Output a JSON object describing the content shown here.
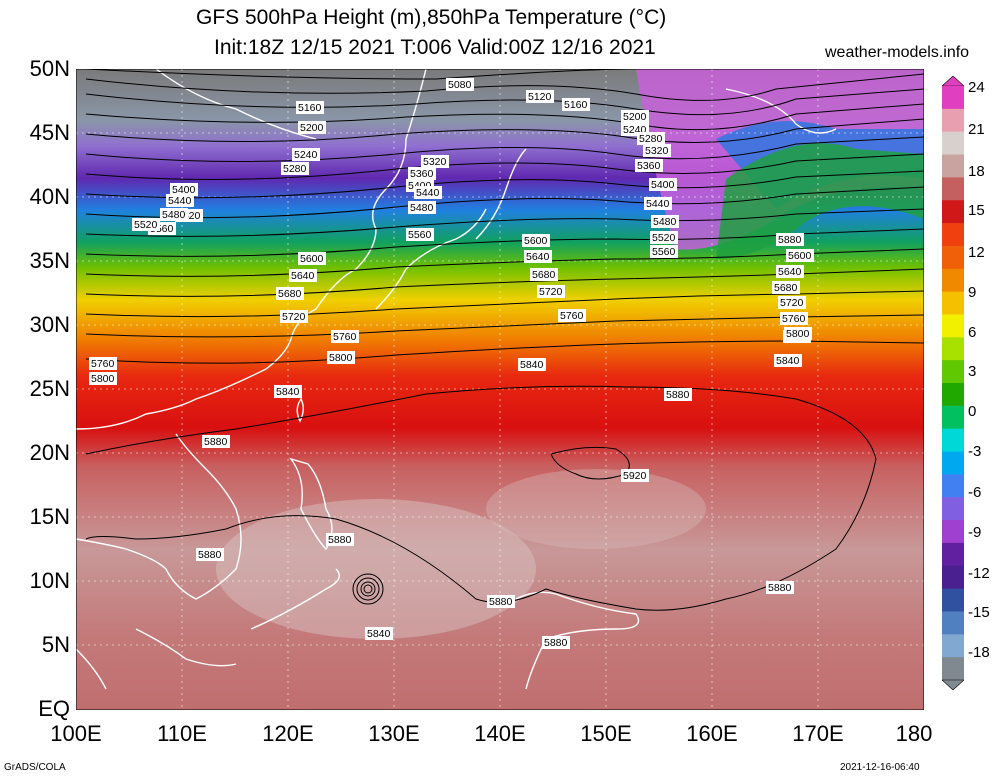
{
  "header": {
    "title_line1": "GFS 500hPa Height (m),850hPa Temperature (°C)",
    "title_line2": "Init:18Z 12/15 2021 T:006 Valid:00Z 12/16 2021",
    "site": "weather-models.info"
  },
  "axes": {
    "lat_labels": [
      "50N",
      "45N",
      "40N",
      "35N",
      "30N",
      "25N",
      "20N",
      "15N",
      "10N",
      "5N",
      "EQ"
    ],
    "lon_labels": [
      "100E",
      "110E",
      "120E",
      "130E",
      "140E",
      "150E",
      "160E",
      "170E",
      "180"
    ]
  },
  "colorbar": {
    "labels": [
      "24",
      "21",
      "18",
      "15",
      "12",
      "9",
      "6",
      "3",
      "0",
      "-3",
      "-6",
      "-9",
      "-12",
      "-15",
      "-18"
    ],
    "colors": [
      "#e040c0",
      "#e8a0b0",
      "#d8d0cc",
      "#c9a3a0",
      "#c46060",
      "#d01818",
      "#f04010",
      "#f06008",
      "#f08800",
      "#f4c000",
      "#f0f000",
      "#a8e000",
      "#60c800",
      "#20a800",
      "#00c060",
      "#00d8d8",
      "#00a8f0",
      "#4080f0",
      "#8060e0",
      "#a040d0",
      "#6020a0",
      "#4a2090",
      "#3050a0",
      "#5080c0",
      "#80a8d0",
      "#808890"
    ]
  },
  "contours": {
    "labels": [
      "5080",
      "5120",
      "5160",
      "5160",
      "5200",
      "5200",
      "5240",
      "5240",
      "5280",
      "5280",
      "5320",
      "5320",
      "5360",
      "5360",
      "5400",
      "5400",
      "5440",
      "5440",
      "5480",
      "5480",
      "5520",
      "5520",
      "5560",
      "5560",
      "5600",
      "5600",
      "5640",
      "5640",
      "5680",
      "5680",
      "5720",
      "5720",
      "5760",
      "5760",
      "5800",
      "5800",
      "5840",
      "5840",
      "5880",
      "5880",
      "5920",
      "5880",
      "5880",
      "5880",
      "5880",
      "5840",
      "5760",
      "5800",
      "5880",
      "5880",
      "5400",
      "5440",
      "5480",
      "5520",
      "5560",
      "5600",
      "5640",
      "5680",
      "5720",
      "5760",
      "5800",
      "5840"
    ]
  },
  "footer": {
    "credit": "GrADS/COLA",
    "timestamp": "2021-12-16-06:40"
  }
}
